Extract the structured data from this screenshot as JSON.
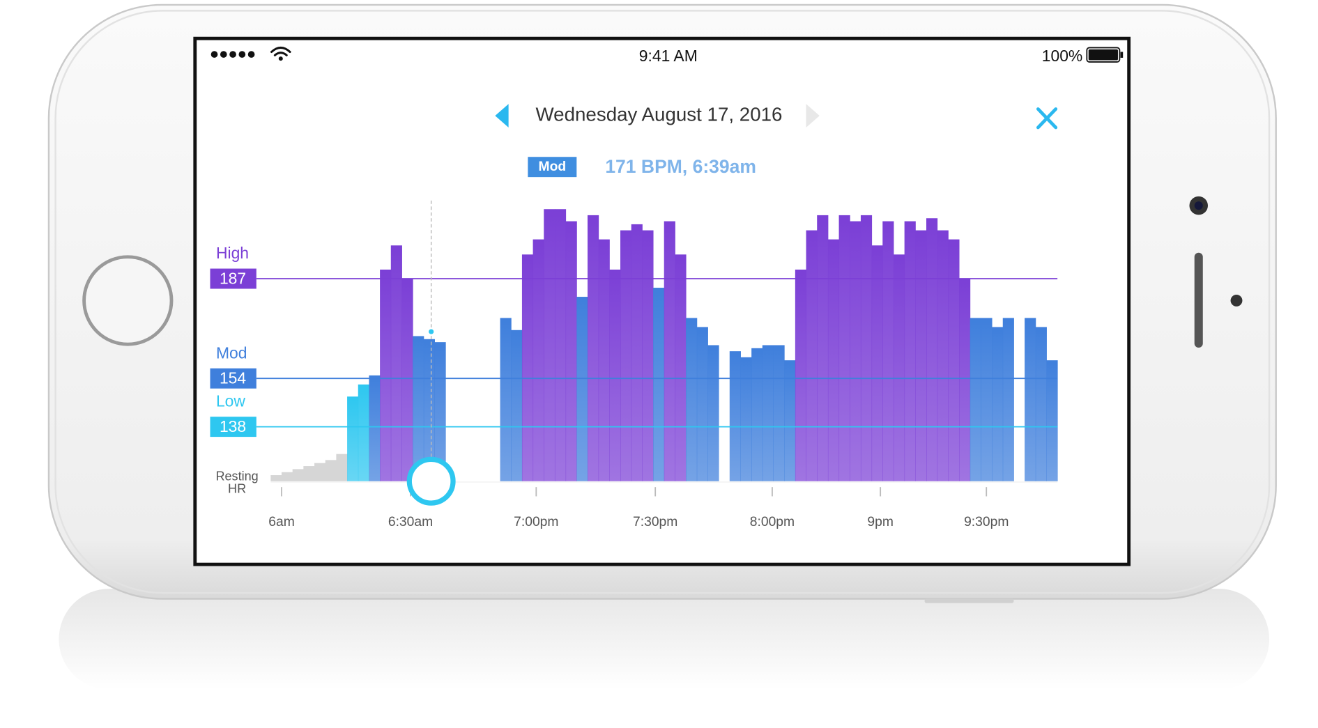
{
  "status_bar": {
    "time": "9:41 AM",
    "battery": "100%"
  },
  "header": {
    "date": "Wednesday August 17, 2016"
  },
  "selected": {
    "zone": "Mod",
    "reading": "171 BPM, 6:39am"
  },
  "chart_data": {
    "type": "bar",
    "zones": [
      {
        "name": "High",
        "value": 187,
        "color": "#7b3fd6"
      },
      {
        "name": "Mod",
        "value": 154,
        "color": "#3f7fdc"
      },
      {
        "name": "Low",
        "value": 138,
        "color": "#2ec7f0"
      }
    ],
    "resting_label": [
      "Resting",
      "HR"
    ],
    "resting_color": "#d6d6d6",
    "values": [
      122,
      123,
      124,
      125,
      126,
      127,
      129,
      148,
      152,
      155,
      190,
      198,
      187,
      168,
      167,
      166,
      null,
      null,
      null,
      null,
      null,
      174,
      170,
      195,
      200,
      210,
      210,
      206,
      181,
      208,
      200,
      190,
      203,
      205,
      203,
      184,
      206,
      195,
      174,
      171,
      165,
      null,
      163,
      161,
      164,
      165,
      165,
      160,
      190,
      203,
      208,
      200,
      208,
      206,
      208,
      198,
      206,
      195,
      206,
      203,
      207,
      203,
      200,
      187,
      174,
      174,
      171,
      174,
      null,
      174,
      171,
      160
    ],
    "xlim": [
      0,
      72
    ],
    "ylim": [
      120,
      212
    ],
    "xticks": [
      {
        "value": 1,
        "label": "6am"
      },
      {
        "value": 12.8,
        "label": "6:30am"
      },
      {
        "value": 24.3,
        "label": "7:00pm"
      },
      {
        "value": 35.2,
        "label": "7:30pm"
      },
      {
        "value": 45.9,
        "label": "8:00pm"
      },
      {
        "value": 55.8,
        "label": "9pm"
      },
      {
        "value": 65.5,
        "label": "9:30pm"
      }
    ]
  }
}
